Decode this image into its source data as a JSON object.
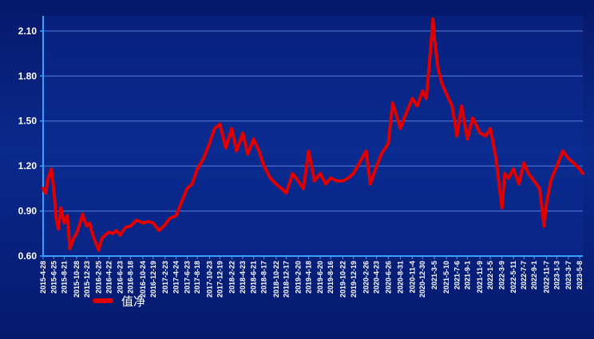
{
  "chart_data": {
    "type": "line",
    "title": "",
    "xlabel": "",
    "ylabel": "",
    "ylim": [
      0.6,
      2.2
    ],
    "grid": true,
    "legend_position": "bottom-left",
    "colors": {
      "background": "#0a2a8c",
      "series": "#e00000",
      "axis": "#3aa0ff",
      "grid": "#5a7fd8"
    },
    "y_ticks": [
      "0.60",
      "0.90",
      "1.20",
      "1.50",
      "1.80",
      "2.10"
    ],
    "x_ticks": [
      "2015-4-28",
      "2015-6-25",
      "2015-8-21",
      "2015-10-28",
      "2015-12-23",
      "2016-2-25",
      "2016-4-22",
      "2016-6-23",
      "2016-8-18",
      "2016-10-24",
      "2016-12-19",
      "2017-2-23",
      "2017-4-24",
      "2017-6-23",
      "2017-8-18",
      "2017-10-23",
      "2017-12-19",
      "2018-2-22",
      "2018-4-23",
      "2018-6-21",
      "2018-8-17",
      "2018-10-22",
      "2018-12-17",
      "2019-2-20",
      "2019-4-18",
      "2019-6-20",
      "2019-8-16",
      "2019-10-22",
      "2019-12-19",
      "2020-2-26",
      "2020-4-23",
      "2020-6-26",
      "2020-8-31",
      "2020-11-4",
      "2020-12-30",
      "2021-3-5",
      "2021-5-10",
      "2021-7-6",
      "2021-9-1",
      "2021-11-9",
      "2022-1-5",
      "2022-3-9",
      "2022-5-11",
      "2022-7-7",
      "2022-9-1",
      "2022-11-7",
      "2023-1-3",
      "2023-3-7",
      "2023-5-8"
    ],
    "series": [
      {
        "name": "值净",
        "x": [
          "2015-4-28",
          "2015-5-12",
          "2015-5-26",
          "2015-6-12",
          "2015-6-25",
          "2015-7-8",
          "2015-7-20",
          "2015-8-3",
          "2015-8-21",
          "2015-9-7",
          "2015-9-21",
          "2015-10-12",
          "2015-10-28",
          "2015-11-16",
          "2015-11-30",
          "2015-12-10",
          "2015-12-23",
          "2016-1-7",
          "2016-1-20",
          "2016-2-5",
          "2016-2-25",
          "2016-3-15",
          "2016-4-1",
          "2016-4-22",
          "2016-5-12",
          "2016-6-1",
          "2016-6-23",
          "2016-7-20",
          "2016-8-18",
          "2016-9-20",
          "2016-10-24",
          "2016-11-20",
          "2016-12-19",
          "2017-1-20",
          "2017-2-23",
          "2017-3-20",
          "2017-4-24",
          "2017-5-20",
          "2017-6-23",
          "2017-7-20",
          "2017-8-18",
          "2017-9-20",
          "2017-10-23",
          "2017-11-20",
          "2017-12-19",
          "2018-1-20",
          "2018-2-22",
          "2018-3-20",
          "2018-4-23",
          "2018-5-20",
          "2018-6-21",
          "2018-7-20",
          "2018-8-17",
          "2018-9-20",
          "2018-10-22",
          "2018-11-20",
          "2018-12-17",
          "2019-1-20",
          "2019-2-20",
          "2019-3-20",
          "2019-4-18",
          "2019-5-20",
          "2019-6-20",
          "2019-7-20",
          "2019-8-16",
          "2019-9-20",
          "2019-10-22",
          "2019-11-20",
          "2019-12-19",
          "2020-1-20",
          "2020-2-26",
          "2020-3-20",
          "2020-4-23",
          "2020-5-20",
          "2020-6-26",
          "2020-7-20",
          "2020-8-31",
          "2020-10-1",
          "2020-11-4",
          "2020-12-1",
          "2020-12-30",
          "2021-1-20",
          "2021-2-10",
          "2021-2-25",
          "2021-3-5",
          "2021-3-25",
          "2021-4-15",
          "2021-5-10",
          "2021-6-10",
          "2021-7-6",
          "2021-8-1",
          "2021-9-1",
          "2021-10-1",
          "2021-11-9",
          "2021-12-10",
          "2022-1-5",
          "2022-2-5",
          "2022-3-9",
          "2022-3-25",
          "2022-4-15",
          "2022-5-11",
          "2022-6-10",
          "2022-7-7",
          "2022-8-1",
          "2022-9-1",
          "2022-10-1",
          "2022-10-25",
          "2022-11-7",
          "2022-12-1",
          "2023-1-3",
          "2023-2-5",
          "2023-3-7",
          "2023-4-5",
          "2023-5-8",
          "2023-5-25"
        ],
        "values": [
          1.05,
          1.02,
          1.12,
          1.18,
          1.05,
          0.85,
          0.78,
          0.92,
          0.82,
          0.87,
          0.65,
          0.72,
          0.75,
          0.82,
          0.88,
          0.84,
          0.8,
          0.82,
          0.76,
          0.7,
          0.64,
          0.72,
          0.74,
          0.76,
          0.75,
          0.77,
          0.74,
          0.79,
          0.8,
          0.84,
          0.82,
          0.83,
          0.82,
          0.77,
          0.81,
          0.85,
          0.87,
          0.95,
          1.05,
          1.08,
          1.18,
          1.25,
          1.35,
          1.45,
          1.48,
          1.32,
          1.45,
          1.3,
          1.42,
          1.28,
          1.38,
          1.3,
          1.2,
          1.12,
          1.08,
          1.05,
          1.02,
          1.15,
          1.1,
          1.05,
          1.3,
          1.1,
          1.15,
          1.08,
          1.12,
          1.1,
          1.1,
          1.12,
          1.15,
          1.22,
          1.3,
          1.08,
          1.2,
          1.28,
          1.35,
          1.62,
          1.45,
          1.55,
          1.65,
          1.6,
          1.7,
          1.65,
          1.95,
          2.18,
          2.05,
          1.85,
          1.75,
          1.68,
          1.6,
          1.4,
          1.6,
          1.38,
          1.52,
          1.42,
          1.4,
          1.45,
          1.25,
          0.92,
          1.15,
          1.12,
          1.18,
          1.08,
          1.22,
          1.15,
          1.1,
          1.05,
          0.8,
          0.95,
          1.1,
          1.2,
          1.3,
          1.25,
          1.22,
          1.18,
          1.15
        ]
      }
    ]
  }
}
